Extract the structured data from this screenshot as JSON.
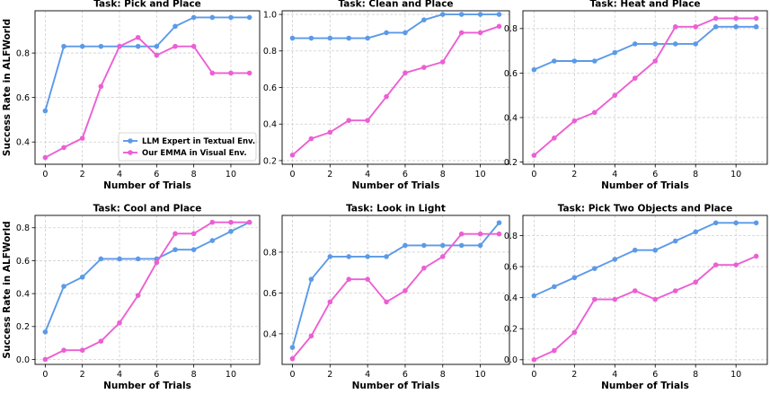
{
  "colors": {
    "expert": "#5b9ae8",
    "emma": "#ec5fd3"
  },
  "figure": {
    "ylabel": "Success Rate in ALFWorld",
    "xlabel": "Number of Trials"
  },
  "legend": {
    "location": "lower-right",
    "panel": 0
  },
  "chart_data": [
    {
      "type": "line",
      "title": "Task: Pick and Place",
      "xlabel": "Number of Trials",
      "ylabel": "Success Rate in ALFWorld",
      "x": [
        0,
        1,
        2,
        3,
        4,
        5,
        6,
        7,
        8,
        9,
        10,
        11
      ],
      "ylim": [
        0.3,
        0.99
      ],
      "yticks": [
        0.4,
        0.6,
        0.8
      ],
      "xticks": [
        0,
        2,
        4,
        6,
        8,
        10
      ],
      "grid": true,
      "series": [
        {
          "name": "LLM Expert in Textual Env.",
          "values": [
            0.54,
            0.83,
            0.83,
            0.83,
            0.83,
            0.83,
            0.83,
            0.92,
            0.96,
            0.96,
            0.96,
            0.96
          ]
        },
        {
          "name": "Our EMMA in Visual Env.",
          "values": [
            0.33,
            0.375,
            0.417,
            0.65,
            0.83,
            0.87,
            0.79,
            0.83,
            0.83,
            0.71,
            0.71,
            0.71
          ]
        }
      ]
    },
    {
      "type": "line",
      "title": "Task: Clean and Place",
      "xlabel": "Number of Trials",
      "ylabel": "",
      "x": [
        0,
        1,
        2,
        3,
        4,
        5,
        6,
        7,
        8,
        9,
        10,
        11
      ],
      "ylim": [
        0.18,
        1.02
      ],
      "yticks": [
        0.2,
        0.4,
        0.6,
        0.8,
        1.0
      ],
      "xticks": [
        0,
        2,
        4,
        6,
        8,
        10
      ],
      "grid": true,
      "series": [
        {
          "name": "LLM Expert in Textual Env.",
          "values": [
            0.87,
            0.87,
            0.87,
            0.87,
            0.87,
            0.9,
            0.9,
            0.97,
            1.0,
            1.0,
            1.0,
            1.0
          ]
        },
        {
          "name": "Our EMMA in Visual Env.",
          "values": [
            0.23,
            0.32,
            0.355,
            0.42,
            0.42,
            0.55,
            0.68,
            0.71,
            0.74,
            0.9,
            0.9,
            0.935
          ]
        }
      ]
    },
    {
      "type": "line",
      "title": "Task: Heat and Place",
      "xlabel": "Number of Trials",
      "ylabel": "",
      "x": [
        0,
        1,
        2,
        3,
        4,
        5,
        6,
        7,
        8,
        9,
        10,
        11
      ],
      "ylim": [
        0.19,
        0.88
      ],
      "yticks": [
        0.2,
        0.4,
        0.6,
        0.8
      ],
      "xticks": [
        0,
        2,
        4,
        6,
        8,
        10
      ],
      "grid": true,
      "series": [
        {
          "name": "LLM Expert in Textual Env.",
          "values": [
            0.615,
            0.654,
            0.654,
            0.654,
            0.692,
            0.731,
            0.731,
            0.731,
            0.731,
            0.808,
            0.808,
            0.808
          ]
        },
        {
          "name": "Our EMMA in Visual Env.",
          "values": [
            0.23,
            0.308,
            0.385,
            0.423,
            0.5,
            0.577,
            0.654,
            0.808,
            0.808,
            0.846,
            0.846,
            0.846
          ]
        }
      ]
    },
    {
      "type": "line",
      "title": "Task: Cool and Place",
      "xlabel": "Number of Trials",
      "ylabel": "Success Rate in ALFWorld",
      "x": [
        0,
        1,
        2,
        3,
        4,
        5,
        6,
        7,
        8,
        9,
        10,
        11
      ],
      "ylim": [
        -0.03,
        0.875
      ],
      "yticks": [
        0.0,
        0.2,
        0.4,
        0.6,
        0.8
      ],
      "xticks": [
        0,
        2,
        4,
        6,
        8,
        10
      ],
      "grid": true,
      "series": [
        {
          "name": "LLM Expert in Textual Env.",
          "values": [
            0.167,
            0.444,
            0.5,
            0.611,
            0.611,
            0.611,
            0.611,
            0.667,
            0.667,
            0.722,
            0.778,
            0.833
          ]
        },
        {
          "name": "Our EMMA in Visual Env.",
          "values": [
            0.0,
            0.056,
            0.056,
            0.111,
            0.222,
            0.389,
            0.589,
            0.764,
            0.764,
            0.833,
            0.833,
            0.833
          ]
        }
      ]
    },
    {
      "type": "line",
      "title": "Task: Look in Light",
      "xlabel": "Number of Trials",
      "ylabel": "",
      "x": [
        0,
        1,
        2,
        3,
        4,
        5,
        6,
        7,
        8,
        9,
        10,
        11
      ],
      "ylim": [
        0.25,
        0.98
      ],
      "yticks": [
        0.4,
        0.6,
        0.8
      ],
      "xticks": [
        0,
        2,
        4,
        6,
        8,
        10
      ],
      "grid": true,
      "series": [
        {
          "name": "LLM Expert in Textual Env.",
          "values": [
            0.333,
            0.667,
            0.778,
            0.778,
            0.778,
            0.778,
            0.833,
            0.833,
            0.833,
            0.833,
            0.833,
            0.944
          ]
        },
        {
          "name": "Our EMMA in Visual Env.",
          "values": [
            0.278,
            0.389,
            0.556,
            0.667,
            0.667,
            0.556,
            0.611,
            0.722,
            0.778,
            0.889,
            0.889,
            0.889
          ]
        }
      ]
    },
    {
      "type": "line",
      "title": "Task: Pick Two Objects and Place",
      "xlabel": "Number of Trials",
      "ylabel": "",
      "x": [
        0,
        1,
        2,
        3,
        4,
        5,
        6,
        7,
        8,
        9,
        10,
        11
      ],
      "ylim": [
        -0.03,
        0.93
      ],
      "yticks": [
        0.0,
        0.2,
        0.4,
        0.6,
        0.8
      ],
      "xticks": [
        0,
        2,
        4,
        6,
        8,
        10
      ],
      "grid": true,
      "series": [
        {
          "name": "LLM Expert in Textual Env.",
          "values": [
            0.412,
            0.471,
            0.529,
            0.588,
            0.647,
            0.706,
            0.706,
            0.765,
            0.824,
            0.882,
            0.882,
            0.882
          ]
        },
        {
          "name": "Our EMMA in Visual Env.",
          "values": [
            0.0,
            0.059,
            0.176,
            0.389,
            0.389,
            0.444,
            0.389,
            0.444,
            0.5,
            0.611,
            0.611,
            0.667
          ]
        }
      ]
    }
  ]
}
